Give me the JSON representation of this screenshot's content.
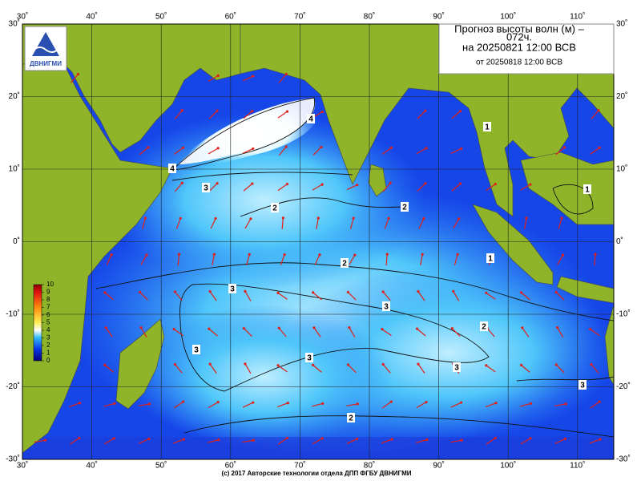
{
  "logo": {
    "text": "ДВНИГМИ"
  },
  "header": {
    "title_line1": "Прогноз высоты волн (м) –",
    "title_line2": "072ч.",
    "title_line3": "на 20250821 12:00 ВСВ",
    "subtitle": "от 20250818 12:00 ВСВ"
  },
  "map": {
    "lon_ticks": [
      {
        "value": 30,
        "label": "30˚"
      },
      {
        "value": 40,
        "label": "40˚"
      },
      {
        "value": 50,
        "label": "50˚"
      },
      {
        "value": 60,
        "label": "60˚"
      },
      {
        "value": 70,
        "label": "70˚"
      },
      {
        "value": 80,
        "label": "80˚"
      },
      {
        "value": 90,
        "label": "90˚"
      },
      {
        "value": 100,
        "label": "100˚"
      },
      {
        "value": 110,
        "label": "110˚"
      }
    ],
    "lat_ticks": [
      {
        "value": 30,
        "label": "30˚"
      },
      {
        "value": 20,
        "label": "20˚"
      },
      {
        "value": 10,
        "label": "10˚"
      },
      {
        "value": 0,
        "label": "0˚"
      },
      {
        "value": -10,
        "label": "-10˚"
      },
      {
        "value": -20,
        "label": "-20˚"
      },
      {
        "value": -30,
        "label": "-30˚"
      }
    ],
    "contour_labels": [
      4,
      4,
      3,
      2,
      2,
      1,
      1,
      1,
      2,
      3,
      3,
      2,
      3,
      3,
      3,
      3,
      2
    ]
  },
  "colorbar": {
    "ticks": [
      10,
      9,
      8,
      7,
      6,
      5,
      4,
      3,
      2,
      1,
      0
    ]
  },
  "footer": "(c) 2017 Авторские технологии отдела ДПП ФГБУ ДВНИГМИ"
}
